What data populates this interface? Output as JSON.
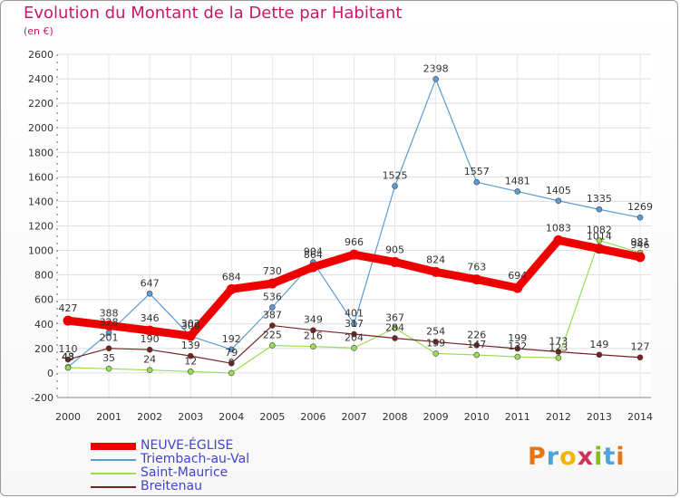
{
  "chart_data": {
    "type": "line",
    "title": "Evolution du Montant de la Dette par Habitant",
    "subtitle": "(en €)",
    "xlabel": "",
    "ylabel": "",
    "x": [
      2000,
      2001,
      2002,
      2003,
      2004,
      2005,
      2006,
      2007,
      2008,
      2009,
      2010,
      2011,
      2012,
      2013,
      2014
    ],
    "ylim": [
      -200,
      2600
    ],
    "yticks": [
      -200,
      0,
      200,
      400,
      600,
      800,
      1000,
      1200,
      1400,
      1600,
      1800,
      2000,
      2200,
      2400,
      2600
    ],
    "grid": true,
    "legend_position": "bottom-left",
    "series": [
      {
        "name": "NEUVE-ÉGLISE",
        "color": "#ee0000",
        "values": [
          427,
          388,
          346,
          302,
          684,
          730,
          864,
          966,
          905,
          824,
          763,
          694,
          1083,
          1014,
          946
        ]
      },
      {
        "name": "Triembach-au-Val",
        "color": "#5b9bd5",
        "values": [
          48,
          328,
          647,
          300,
          192,
          536,
          904,
          401,
          1525,
          2398,
          1557,
          1481,
          1405,
          1335,
          1269
        ]
      },
      {
        "name": "Saint-Maurice",
        "color": "#99dd55",
        "values": [
          43,
          35,
          24,
          12,
          0,
          225,
          216,
          204,
          367,
          159,
          147,
          132,
          123,
          1082,
          981
        ]
      },
      {
        "name": "Breitenau",
        "color": "#772222",
        "values": [
          110,
          201,
          190,
          139,
          79,
          387,
          349,
          317,
          284,
          254,
          226,
          199,
          173,
          149,
          127
        ]
      }
    ]
  },
  "logo": {
    "letters": [
      "P",
      "r",
      "o",
      "x",
      "i",
      "t",
      "i"
    ],
    "colors": [
      "#e87511",
      "#4fa3d8",
      "#f2b600",
      "#cc3355",
      "#88bb22",
      "#4fa3d8",
      "#e87511"
    ]
  }
}
